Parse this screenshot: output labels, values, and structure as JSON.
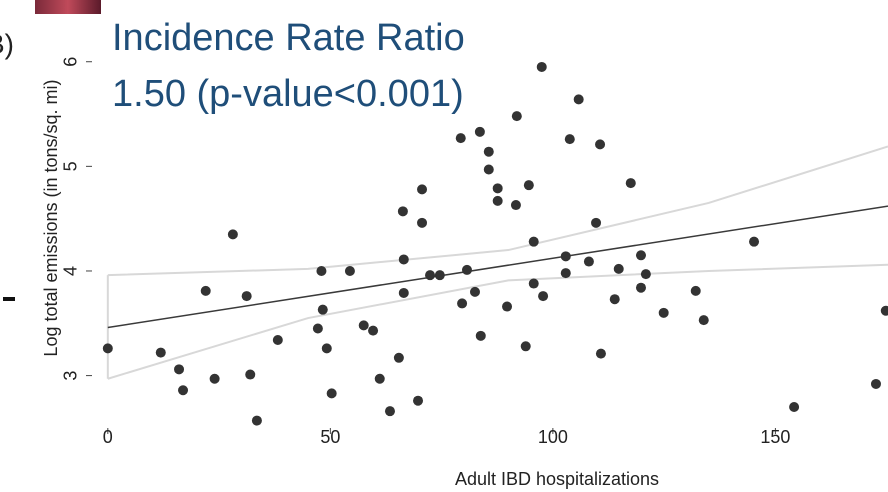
{
  "chart_data": {
    "type": "scatter",
    "panel_label": "B)",
    "annotations": [
      "Incidence Rate Ratio",
      "1.50 (p-value<0.001)"
    ],
    "x_label": "Adult IBD hospitalizations",
    "y_label": "Log total emissions (in tons/sq. mi)",
    "xlim": [
      -2.43,
      175.3
    ],
    "ylim": [
      2.48,
      6.59
    ],
    "xticks": [
      0,
      50,
      100,
      150
    ],
    "yticks": [
      3,
      4,
      5,
      6
    ],
    "color": "#333333",
    "x": [
      0,
      11.9,
      16,
      16.9,
      22,
      24,
      28.1,
      31.2,
      32,
      33.5,
      38.2,
      47.2,
      48,
      48.3,
      49.2,
      50.3,
      54.4,
      57.5,
      59.6,
      61.1,
      63.4,
      65.4,
      66.3,
      66.5,
      66.5,
      69.7,
      70.6,
      70.6,
      72.4,
      74.6,
      79.3,
      79.6,
      80.7,
      82.5,
      83.6,
      83.8,
      85.6,
      85.6,
      87.6,
      87.6,
      89.7,
      91.7,
      91.9,
      93.9,
      94.6,
      95.7,
      95.7,
      97.5,
      97.8,
      102.9,
      102.9,
      103.8,
      105.8,
      108.1,
      109.7,
      110.6,
      110.8,
      113.9,
      114.8,
      117.5,
      119.8,
      119.8,
      120.9,
      124.9,
      132.1,
      133.9,
      145.2,
      154.2,
      172.6,
      174.8
    ],
    "values": [
      3.26,
      3.22,
      3.06,
      2.86,
      3.81,
      2.97,
      4.35,
      3.76,
      3.01,
      2.57,
      3.34,
      3.45,
      4.0,
      3.63,
      3.26,
      2.83,
      4.0,
      3.48,
      3.43,
      2.97,
      2.66,
      3.17,
      4.57,
      4.11,
      3.79,
      2.76,
      4.78,
      4.46,
      3.96,
      3.96,
      5.27,
      3.69,
      4.01,
      3.8,
      5.33,
      3.38,
      5.14,
      4.97,
      4.79,
      4.67,
      3.66,
      4.63,
      5.48,
      3.28,
      4.82,
      4.28,
      3.88,
      5.95,
      3.76,
      4.14,
      3.98,
      5.26,
      5.64,
      4.09,
      4.46,
      5.21,
      3.21,
      3.73,
      4.02,
      4.84,
      3.84,
      4.15,
      3.97,
      3.6,
      3.81,
      3.53,
      4.28,
      2.7,
      2.92,
      3.62
    ],
    "fit": {
      "color": "#3a3a3a",
      "x": [
        0,
        175.3
      ],
      "values": [
        3.46,
        4.62
      ]
    },
    "band": {
      "color": "#d8d8d8",
      "x": [
        0,
        45,
        90,
        135,
        175.3
      ],
      "upper": [
        3.96,
        4.02,
        4.2,
        4.65,
        5.19
      ],
      "lower": [
        2.97,
        3.55,
        3.91,
        4.0,
        4.06
      ]
    }
  }
}
